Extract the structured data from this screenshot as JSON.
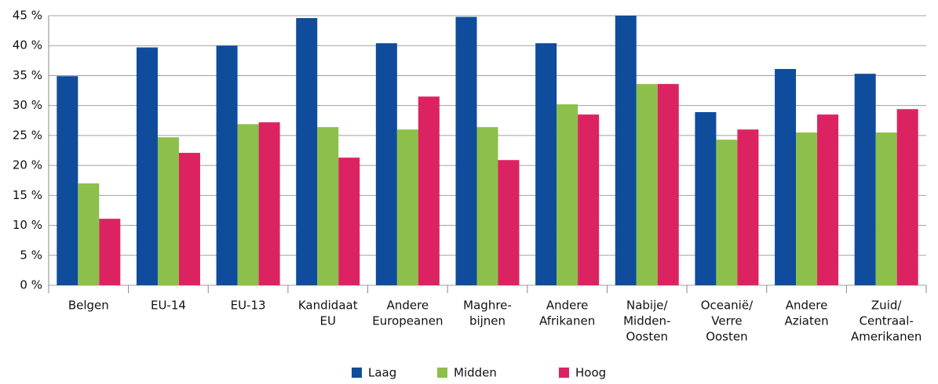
{
  "chart_data": {
    "type": "bar",
    "categories": [
      [
        "Belgen"
      ],
      [
        "EU-14"
      ],
      [
        "EU-13"
      ],
      [
        "Kandidaat",
        "EU"
      ],
      [
        "Andere",
        "Europeanen"
      ],
      [
        "Maghre-",
        "bijnen"
      ],
      [
        "Andere",
        "Afrikanen"
      ],
      [
        "Nabije/",
        "Midden-",
        "Oosten"
      ],
      [
        "Oceanië/",
        "Verre",
        "Oosten"
      ],
      [
        "Andere",
        "Aziaten"
      ],
      [
        "Zuid/",
        "Centraal-",
        "Amerikanen"
      ]
    ],
    "series": [
      {
        "name": "Laag",
        "color": "#0f4c9b",
        "values": [
          34.9,
          39.7,
          40.0,
          44.6,
          40.4,
          44.8,
          40.4,
          45,
          28.9,
          36.1,
          35.3
        ]
      },
      {
        "name": "Midden",
        "color": "#8cc04a",
        "values": [
          17.0,
          24.7,
          26.9,
          26.4,
          26.0,
          26.4,
          30.2,
          33.6,
          24.3,
          25.5,
          25.5
        ]
      },
      {
        "name": "Hoog",
        "color": "#dc2362",
        "values": [
          11.1,
          22.1,
          27.2,
          21.3,
          31.5,
          20.9,
          28.5,
          33.6,
          26.0,
          28.5,
          29.4
        ]
      }
    ],
    "ylim": [
      0,
      45
    ],
    "yticks": [
      {
        "value": 0,
        "label": "0 %"
      },
      {
        "value": 5,
        "label": "5 %"
      },
      {
        "value": 10,
        "label": "10 %"
      },
      {
        "value": 15,
        "label": "15 %"
      },
      {
        "value": 20,
        "label": "20 %"
      },
      {
        "value": 25,
        "label": "25 %"
      },
      {
        "value": 30,
        "label": "30 %"
      },
      {
        "value": 35,
        "label": "35 %"
      },
      {
        "value": 40,
        "label": "40 %"
      },
      {
        "value": 45,
        "label": "45 %"
      }
    ],
    "grid": true,
    "legend": "bottom"
  }
}
